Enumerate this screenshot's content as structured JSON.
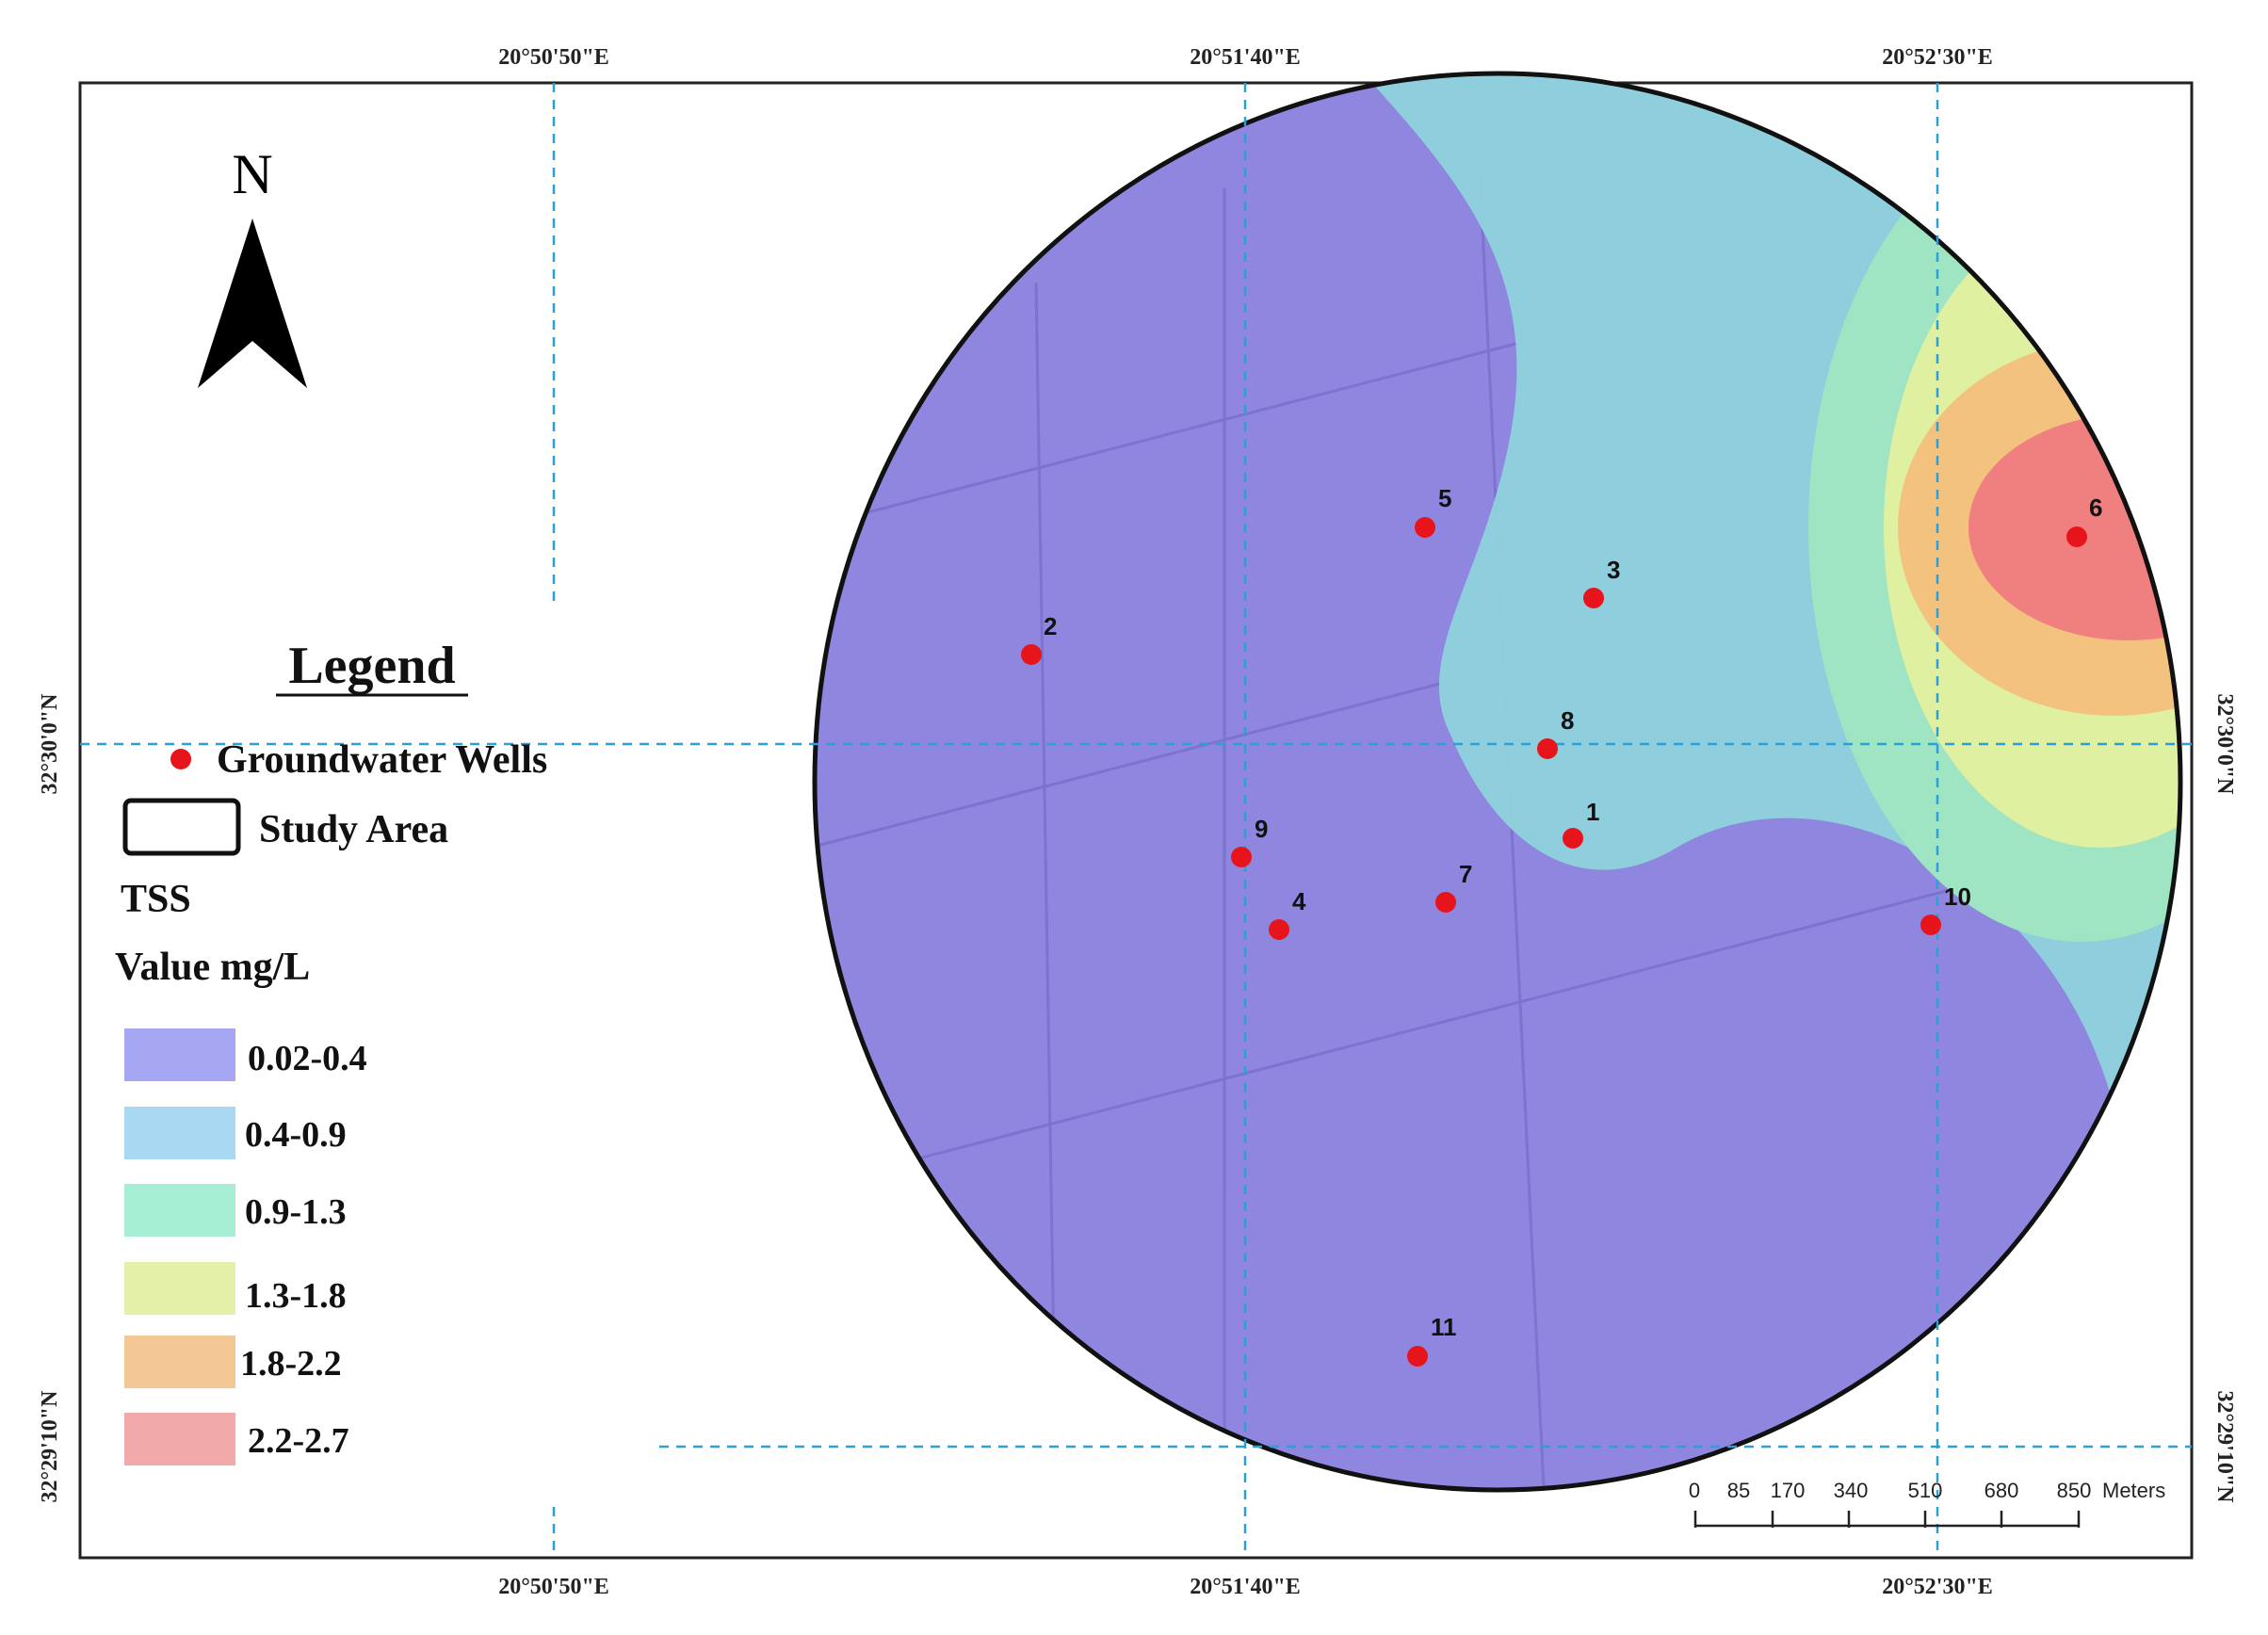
{
  "coords": {
    "top": [
      "20°50'50\"E",
      "20°51'40\"E",
      "20°52'30\"E"
    ],
    "bottom": [
      "20°50'50\"E",
      "20°51'40\"E",
      "20°52'30\"E"
    ],
    "left": [
      "32°30'0\"N",
      "32°29'10\"N"
    ],
    "right": [
      "32°30'0\"N",
      "32°29'10\"N"
    ]
  },
  "north_label": "N",
  "legend": {
    "title": "Legend",
    "wells_label": "Groundwater Wells",
    "study_area_label": "Study Area",
    "variable": "TSS",
    "unit_label": "Value mg/L",
    "classes": [
      {
        "label": "0.02-0.4",
        "color": "#a6a6f2"
      },
      {
        "label": "0.4-0.9",
        "color": "#a9d8f3"
      },
      {
        "label": "0.9-1.3",
        "color": "#a6eed4"
      },
      {
        "label": "1.3-1.8",
        "color": "#e4f0a8"
      },
      {
        "label": "1.8-2.2",
        "color": "#f3c894"
      },
      {
        "label": "2.2-2.7",
        "color": "#f2a9a9"
      }
    ]
  },
  "wells": [
    "1",
    "2",
    "3",
    "4",
    "5",
    "6",
    "7",
    "8",
    "9",
    "10",
    "11"
  ],
  "scale": {
    "ticks": [
      "0",
      "85",
      "170",
      "340",
      "510",
      "680",
      "850"
    ],
    "unit": "Meters"
  },
  "colors": {
    "well": "#e8141c",
    "graticule": "#2b9fd6",
    "zone_low": "#8f86e0",
    "zone_mid": "#8fd2dc",
    "zone_green": "#9fe5c3",
    "zone_yellow": "#dff0a0",
    "zone_orange": "#f2c27e",
    "zone_red": "#f08080"
  }
}
